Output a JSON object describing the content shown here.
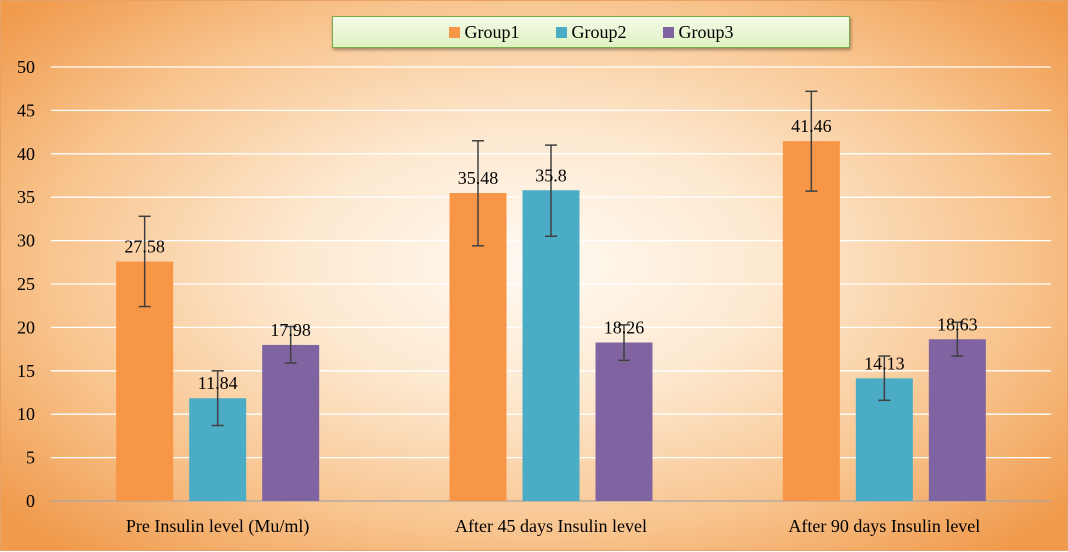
{
  "chart_data": {
    "type": "bar",
    "categories": [
      "Pre Insulin level (Mu/ml)",
      "After 45 days Insulin level",
      "After 90 days Insulin level"
    ],
    "series": [
      {
        "name": "Group1",
        "color": "#F79646",
        "values": [
          27.58,
          35.48,
          41.46
        ],
        "labels": [
          "27.58",
          "35.48",
          "41.46"
        ],
        "err_low": [
          22.4,
          29.4,
          35.7
        ],
        "err_high": [
          32.8,
          41.5,
          47.2
        ]
      },
      {
        "name": "Group2",
        "color": "#4BACC6",
        "values": [
          11.84,
          35.8,
          14.13
        ],
        "labels": [
          "11.84",
          "35.8",
          "14.13"
        ],
        "err_low": [
          8.7,
          30.5,
          11.6
        ],
        "err_high": [
          15.0,
          41.0,
          16.7
        ]
      },
      {
        "name": "Group3",
        "color": "#8064A2",
        "values": [
          17.98,
          18.26,
          18.63
        ],
        "labels": [
          "17.98",
          "18.26",
          "18.63"
        ],
        "err_low": [
          15.9,
          16.2,
          16.7
        ],
        "err_high": [
          20.1,
          20.3,
          20.6
        ]
      }
    ],
    "ylim": [
      0,
      50
    ],
    "yticks": [
      0,
      5,
      10,
      15,
      20,
      25,
      30,
      35,
      40,
      45,
      50
    ],
    "grid": true,
    "legend_position": "top"
  }
}
